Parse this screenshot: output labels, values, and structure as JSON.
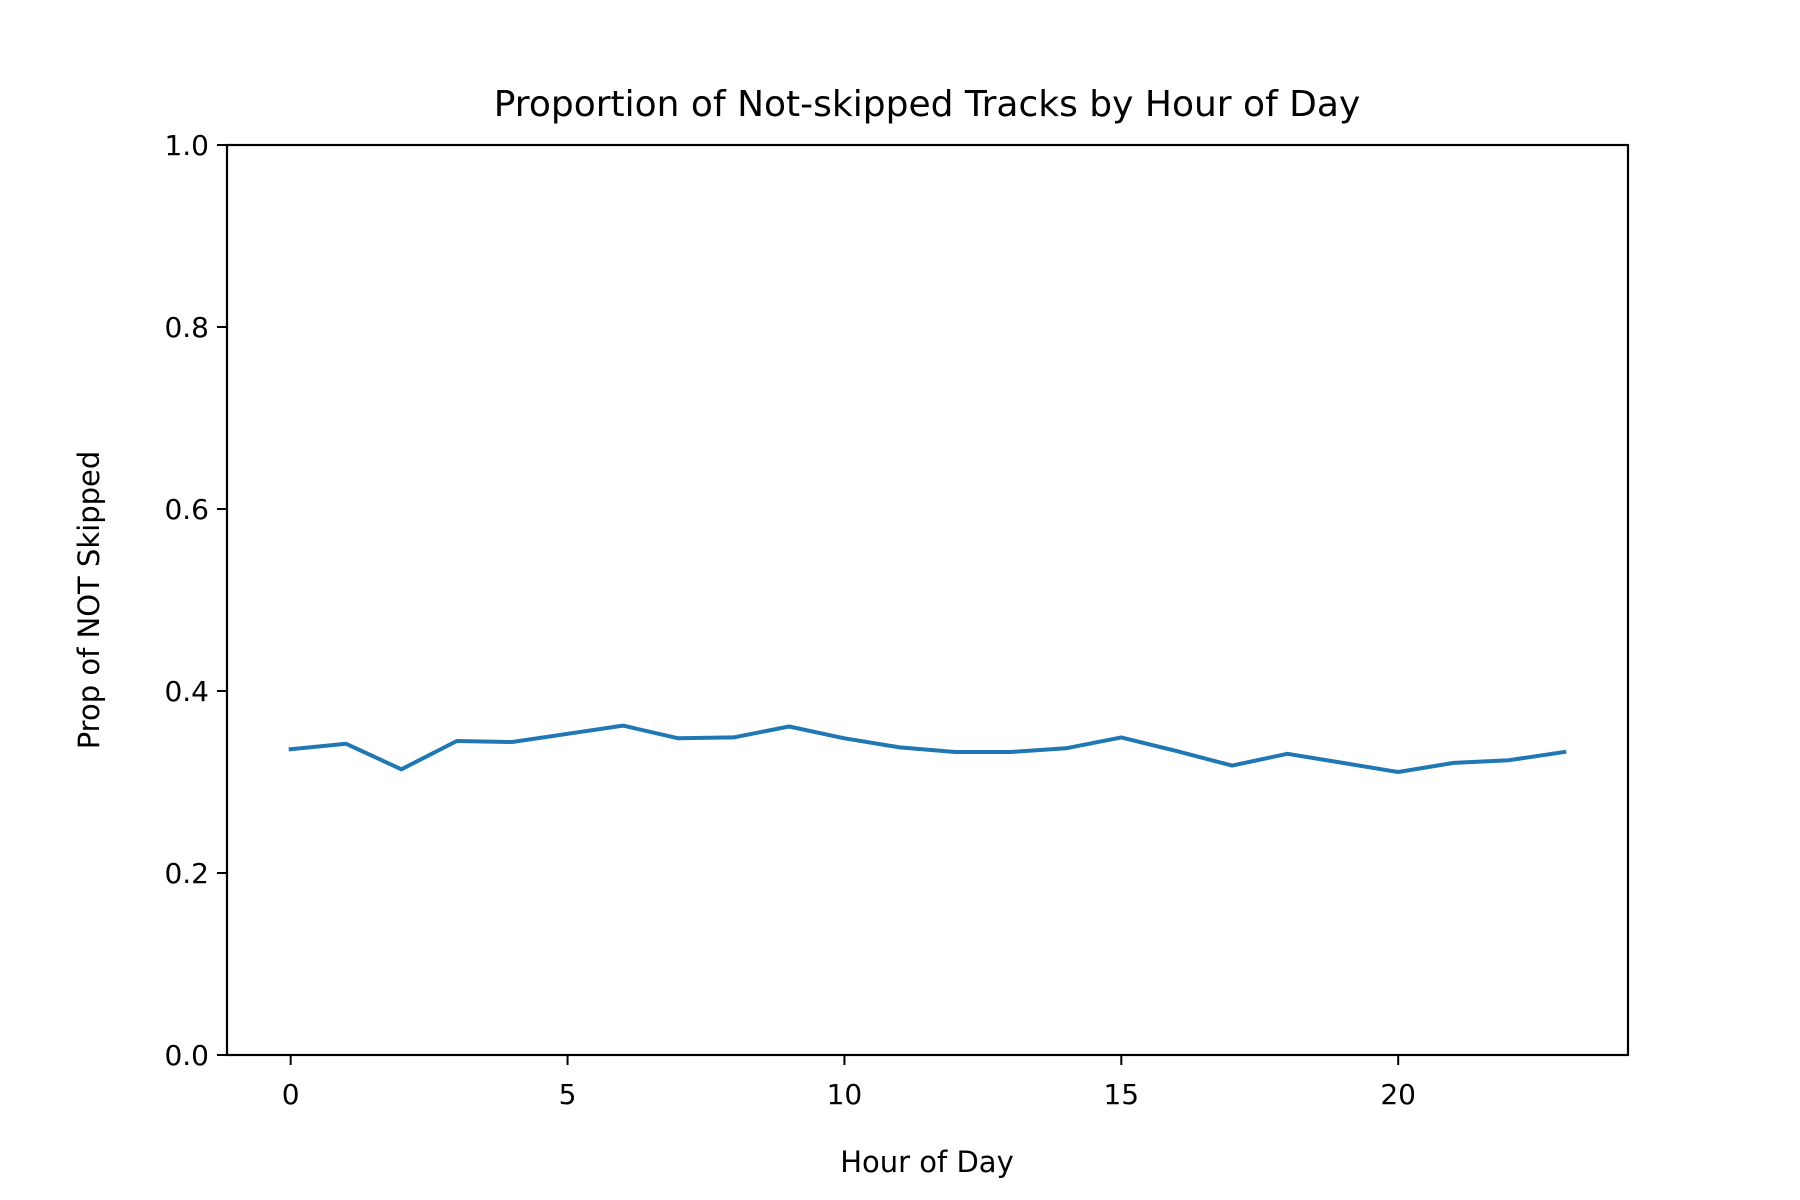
{
  "chart_data": {
    "type": "line",
    "title": "Proportion of Not-skipped Tracks by Hour of Day",
    "xlabel": "Hour of Day",
    "ylabel": "Prop of NOT Skipped",
    "xlim": [
      -1.15,
      24.15
    ],
    "ylim": [
      0.0,
      1.0
    ],
    "x_ticks": [
      0,
      5,
      10,
      15,
      20
    ],
    "x_tick_labels": [
      "0",
      "5",
      "10",
      "15",
      "20"
    ],
    "y_ticks": [
      0.0,
      0.2,
      0.4,
      0.6,
      0.8,
      1.0
    ],
    "y_tick_labels": [
      "0.0",
      "0.2",
      "0.4",
      "0.6",
      "0.8",
      "1.0"
    ],
    "grid": false,
    "legend": "none",
    "series": [
      {
        "color": "#1f77b4",
        "x": [
          0,
          1,
          2,
          3,
          4,
          5,
          6,
          7,
          8,
          9,
          10,
          11,
          12,
          13,
          14,
          15,
          16,
          17,
          18,
          19,
          20,
          21,
          22,
          23
        ],
        "values": [
          0.336,
          0.342,
          0.314,
          0.345,
          0.344,
          0.353,
          0.362,
          0.348,
          0.349,
          0.361,
          0.348,
          0.338,
          0.333,
          0.333,
          0.337,
          0.349,
          0.334,
          0.318,
          0.331,
          0.321,
          0.311,
          0.321,
          0.324,
          0.333
        ]
      }
    ]
  }
}
